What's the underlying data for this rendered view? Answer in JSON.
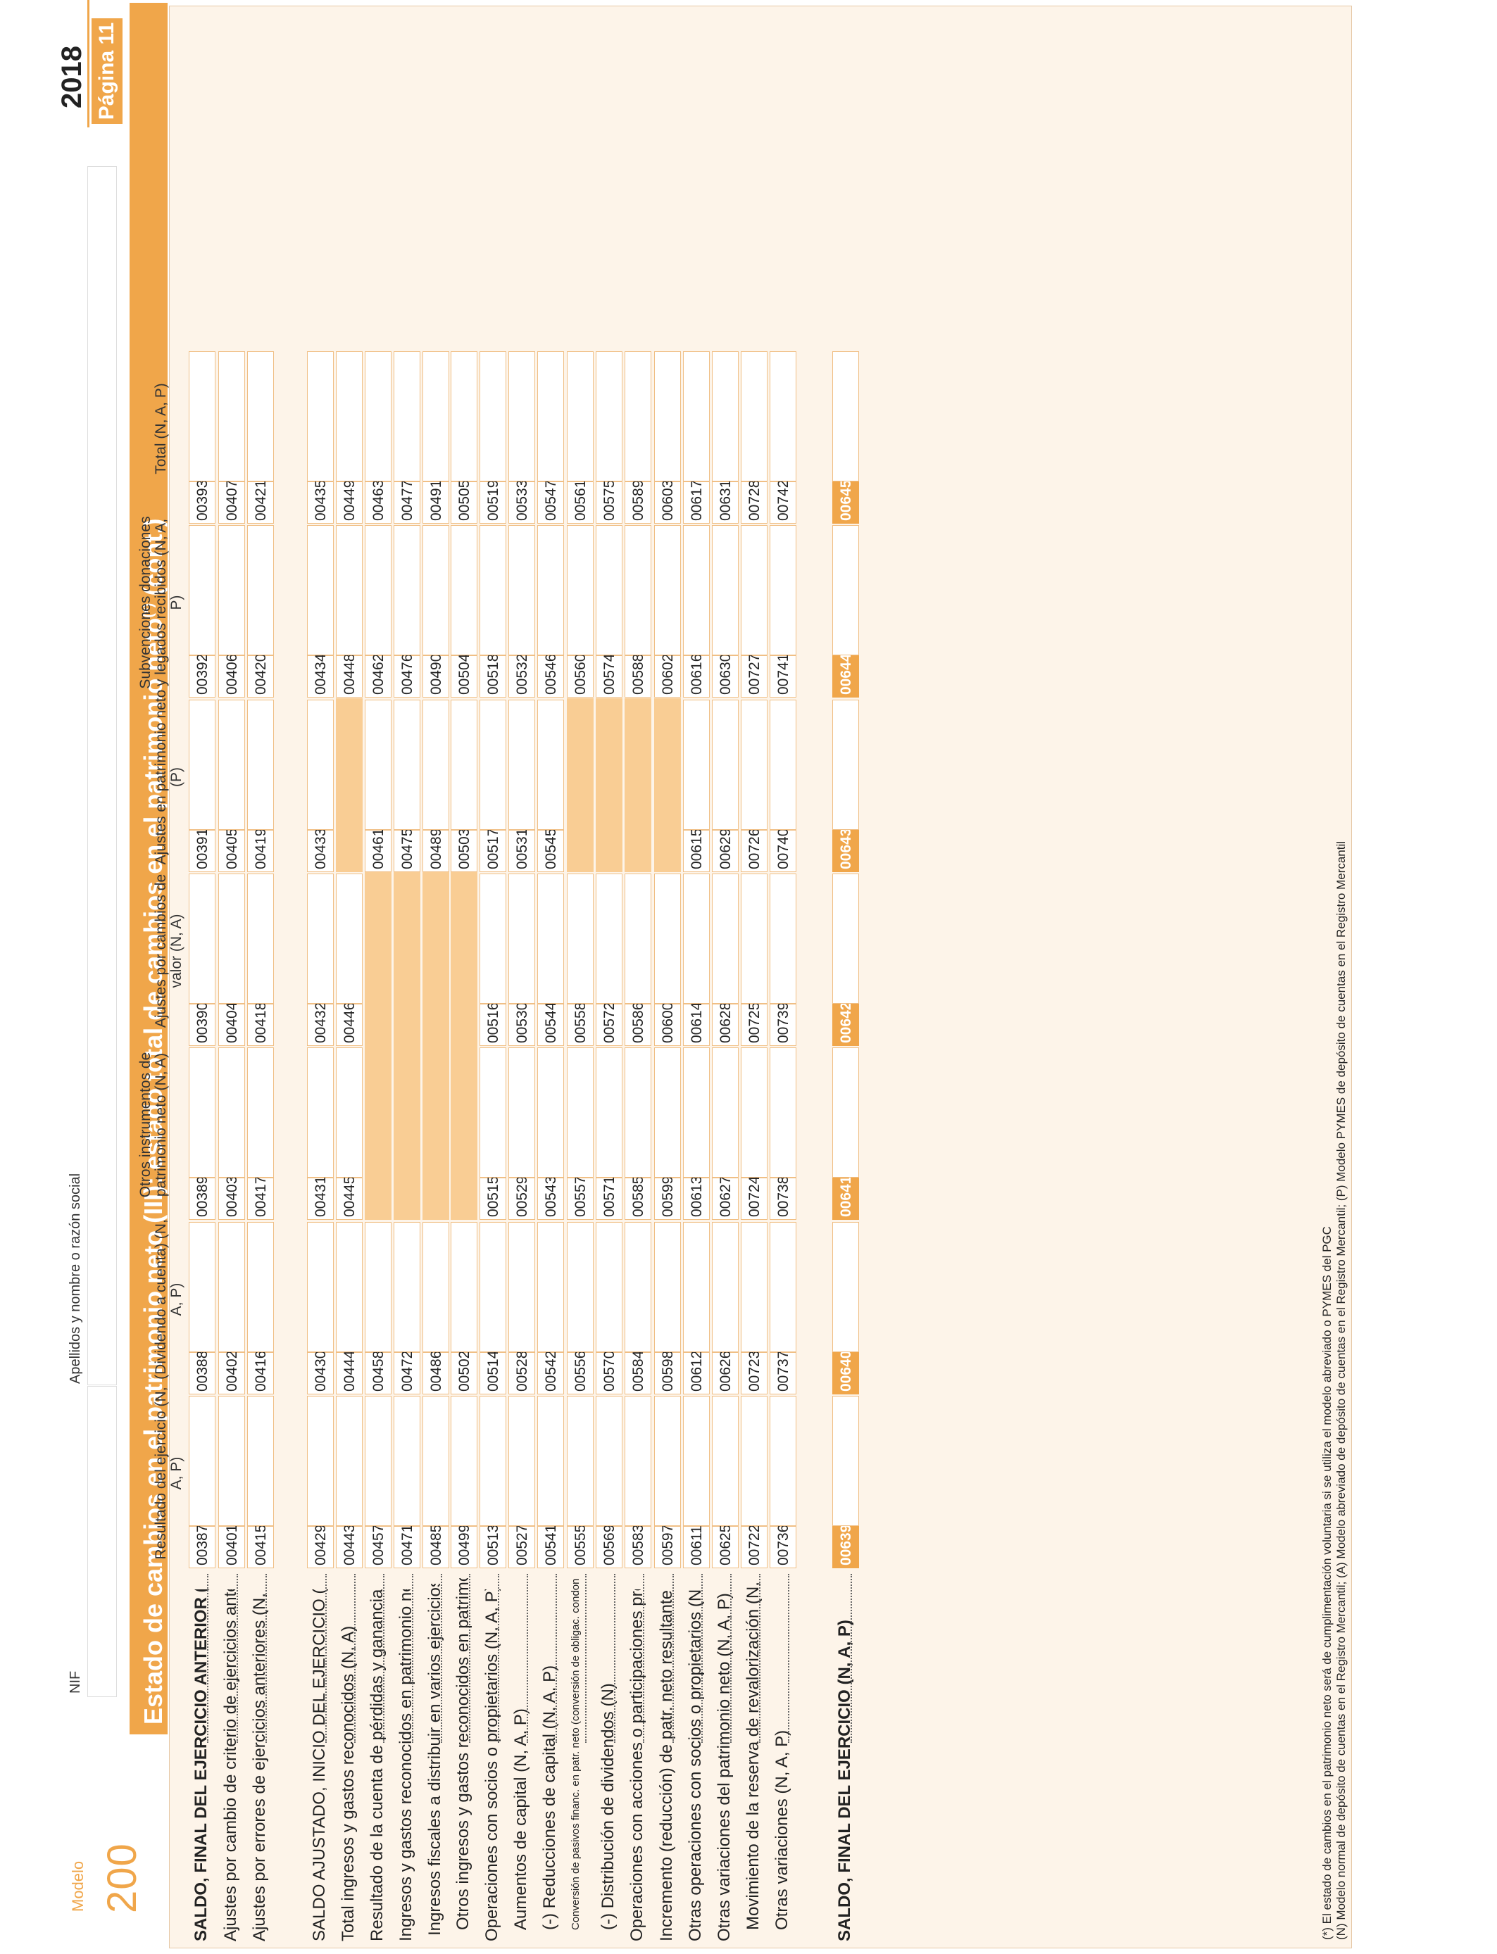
{
  "header": {
    "modelo_label": "Modelo",
    "modelo_number": "200",
    "nif_label": "NIF",
    "name_label": "Apellidos y nombre o razón social",
    "year": "2018",
    "page": "Página 11"
  },
  "title": "Estado de cambios en el patrimonio neto (III): estado total de cambios en el patrimonio neto",
  "title_sup": "(*)",
  "title_suffix": " (cont.)",
  "columns": [
    "Resultado del ejercicio (N, A, P)",
    "(Dividendo a cuenta) (N, A, P)",
    "Otros instrumentos de patrimonio neto (N, A)",
    "Ajustes por cambios de valor (N, A)",
    "Ajustes en patrimonio neto (P)",
    "Subvenciones donaciones y legados recibidos (N, A, P)",
    "Total (N, A, P)"
  ],
  "rows": [
    {
      "label": "SALDO, FINAL DEL EJERCICIO ANTERIOR (N, A, P)",
      "codes": [
        "00387",
        "00388",
        "00389",
        "00390",
        "00391",
        "00392",
        "00393"
      ]
    },
    {
      "label": "Ajustes por cambio de criterio de ejercicios anteriores (N, A, P)",
      "codes": [
        "00401",
        "00402",
        "00403",
        "00404",
        "00405",
        "00406",
        "00407"
      ]
    },
    {
      "label": "Ajustes por errores de ejercicios anteriores (N, A, P)",
      "codes": [
        "00415",
        "00416",
        "00417",
        "00418",
        "00419",
        "00420",
        "00421"
      ]
    },
    {
      "label": "SALDO AJUSTADO, INICIO DEL EJERCICIO (N, A, P)",
      "codes": [
        "00429",
        "00430",
        "00431",
        "00432",
        "00433",
        "00434",
        "00435"
      ]
    },
    {
      "label": "Total ingresos y gastos reconocidos (N, A)",
      "codes": [
        "00443",
        "00444",
        "00445",
        "00446",
        "",
        "00448",
        "00449"
      ]
    },
    {
      "label": "Resultado de la cuenta de pérdidas y ganancias (P)",
      "codes": [
        "00457",
        "00458",
        "",
        "",
        "00461",
        "00462",
        "00463"
      ]
    },
    {
      "label": "Ingresos y gastos reconocidos en patrimonio neto (P)",
      "codes": [
        "00471",
        "00472",
        "",
        "",
        "00475",
        "00476",
        "00477"
      ]
    },
    {
      "label": "Ingresos fiscales a distribuir en varios ejercicios (P)",
      "codes": [
        "00485",
        "00486",
        "",
        "",
        "00489",
        "00490",
        "00491"
      ]
    },
    {
      "label": "Otros ingresos y gastos reconocidos en patrimonio neto (P)",
      "codes": [
        "00499",
        "00502",
        "",
        "",
        "00503",
        "00504",
        "00505"
      ]
    },
    {
      "label": "Operaciones con socios o propietarios (N, A, P)",
      "codes": [
        "00513",
        "00514",
        "00515",
        "00516",
        "00517",
        "00518",
        "00519"
      ]
    },
    {
      "label": "Aumentos de capital (N, A, P)",
      "codes": [
        "00527",
        "00528",
        "00529",
        "00530",
        "00531",
        "00532",
        "00533"
      ]
    },
    {
      "label": "(-) Reducciones de capital (N, A, P)",
      "codes": [
        "00541",
        "00542",
        "00543",
        "00544",
        "00545",
        "00546",
        "00547"
      ]
    },
    {
      "label": "Conversión de pasivos financ. en patr. neto (conversión de obligac. condonaciones de deudas) (N)",
      "codes": [
        "00555",
        "00556",
        "00557",
        "00558",
        "",
        "00560",
        "00561"
      ]
    },
    {
      "label": "(-) Distribución de dividendos (N)",
      "codes": [
        "00569",
        "00570",
        "00571",
        "00572",
        "",
        "00574",
        "00575"
      ]
    },
    {
      "label": "Operaciones con acciones o participaciones propias (netas) (N)",
      "codes": [
        "00583",
        "00584",
        "00585",
        "00586",
        "",
        "00588",
        "00589"
      ]
    },
    {
      "label": "Incremento (reducción) de patr. neto resultante de una combinación de negocios (N)",
      "codes": [
        "00597",
        "00598",
        "00599",
        "00600",
        "",
        "00602",
        "00603"
      ]
    },
    {
      "label": "Otras operaciones con socios o propietarios (N, A, P)",
      "codes": [
        "00611",
        "00612",
        "00613",
        "00614",
        "00615",
        "00616",
        "00617"
      ]
    },
    {
      "label": "Otras variaciones del patrimonio neto (N, A, P)",
      "codes": [
        "00625",
        "00626",
        "00627",
        "00628",
        "00629",
        "00630",
        "00631"
      ]
    },
    {
      "label": "Movimiento de la reserva de revalorización (N, A, P)",
      "codes": [
        "00722",
        "00723",
        "00724",
        "00725",
        "00726",
        "00727",
        "00728"
      ]
    },
    {
      "label": "Otras variaciones (N, A, P)",
      "codes": [
        "00736",
        "00737",
        "00738",
        "00739",
        "00740",
        "00741",
        "00742"
      ]
    },
    {
      "label": "SALDO, FINAL DEL EJERCICIO (N, A, P)",
      "codes": [
        "00639",
        "00640",
        "00641",
        "00642",
        "00643",
        "00644",
        "00645"
      ]
    }
  ],
  "footnotes": [
    "(*) El estado de cambios en el patrimonio neto será de cumplimentación voluntaria si se utiliza el modelo abreviado o PYMES del PGC",
    "(N)  Modelo normal de depósito de cuentas en el Registro Mercantil; (A) Modelo abreviado de depósito de cuentas en el Registro Mercantil; (P) Modelo PYMES de depósito de cuentas en el Registro Mercantil"
  ],
  "colors": {
    "accent": "#f0a64a",
    "shade": "#f9cd94",
    "border": "#f0bf85",
    "panel": "#fdf4e9"
  }
}
